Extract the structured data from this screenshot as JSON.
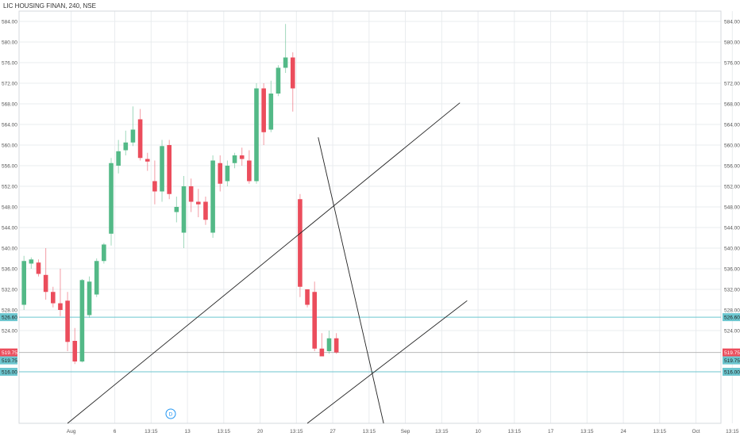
{
  "header": {
    "title": "LIC HOUSING FINAN, 240, NSE"
  },
  "event_marker": {
    "label": "D"
  },
  "chart_data": {
    "type": "candlestick",
    "title": "LIC HOUSING FINAN, 240, NSE",
    "ylim": [
      506,
      586
    ],
    "y_ticks": [
      584,
      580,
      576,
      572,
      568,
      564,
      560,
      556,
      552,
      548,
      544,
      540,
      536,
      532,
      528,
      524
    ],
    "y_tick_labels": [
      "584.00",
      "580.00",
      "576.00",
      "572.00",
      "568.00",
      "564.00",
      "560.00",
      "556.00",
      "552.00",
      "548.00",
      "544.00",
      "540.00",
      "536.00",
      "532.00",
      "528.00",
      "524.00"
    ],
    "x_ticks": [
      {
        "i": 6.5,
        "label": "Aug"
      },
      {
        "i": 12.5,
        "label": "6"
      },
      {
        "i": 17.5,
        "label": "13:15"
      },
      {
        "i": 22.5,
        "label": "13"
      },
      {
        "i": 27.5,
        "label": "13:15"
      },
      {
        "i": 32.5,
        "label": "20"
      },
      {
        "i": 37.5,
        "label": "13:15"
      },
      {
        "i": 42.5,
        "label": "27"
      },
      {
        "i": 47.5,
        "label": "13:15"
      },
      {
        "i": 52.5,
        "label": "Sep"
      },
      {
        "i": 57.5,
        "label": "13:15"
      },
      {
        "i": 62.5,
        "label": "10"
      },
      {
        "i": 67.5,
        "label": "13:15"
      },
      {
        "i": 72.5,
        "label": "17"
      },
      {
        "i": 77.5,
        "label": "13:15"
      },
      {
        "i": 82.5,
        "label": "24"
      },
      {
        "i": 87.5,
        "label": "13:15"
      },
      {
        "i": 92.5,
        "label": "Oct"
      },
      {
        "i": 97.5,
        "label": "13:15"
      }
    ],
    "candles": [
      {
        "o": 529.0,
        "h": 538.5,
        "l": 528.0,
        "c": 537.5
      },
      {
        "o": 537.0,
        "h": 538.2,
        "l": 536.0,
        "c": 537.8
      },
      {
        "o": 537.2,
        "h": 537.8,
        "l": 534.5,
        "c": 535.0
      },
      {
        "o": 534.8,
        "h": 540.0,
        "l": 530.0,
        "c": 531.5
      },
      {
        "o": 531.5,
        "h": 532.5,
        "l": 528.5,
        "c": 529.3
      },
      {
        "o": 529.3,
        "h": 536.0,
        "l": 526.8,
        "c": 528.0
      },
      {
        "o": 529.8,
        "h": 531.5,
        "l": 520.0,
        "c": 521.8
      },
      {
        "o": 522.0,
        "h": 524.5,
        "l": 517.5,
        "c": 518.0
      },
      {
        "o": 518.0,
        "h": 534.0,
        "l": 517.8,
        "c": 533.8
      },
      {
        "o": 527.0,
        "h": 534.5,
        "l": 526.5,
        "c": 533.5
      },
      {
        "o": 531.0,
        "h": 538.0,
        "l": 530.5,
        "c": 537.5
      },
      {
        "o": 537.5,
        "h": 541.0,
        "l": 537.0,
        "c": 540.7
      },
      {
        "o": 542.8,
        "h": 557.5,
        "l": 540.5,
        "c": 556.5
      },
      {
        "o": 556.0,
        "h": 561.0,
        "l": 554.5,
        "c": 558.8
      },
      {
        "o": 559.0,
        "h": 562.8,
        "l": 558.0,
        "c": 560.5
      },
      {
        "o": 560.5,
        "h": 567.5,
        "l": 559.8,
        "c": 563.0
      },
      {
        "o": 565.0,
        "h": 567.0,
        "l": 557.0,
        "c": 557.5
      },
      {
        "o": 557.3,
        "h": 558.5,
        "l": 555.0,
        "c": 556.8
      },
      {
        "o": 553.0,
        "h": 557.0,
        "l": 548.5,
        "c": 551.0
      },
      {
        "o": 551.0,
        "h": 561.0,
        "l": 549.0,
        "c": 559.8
      },
      {
        "o": 560.0,
        "h": 561.0,
        "l": 549.5,
        "c": 550.5
      },
      {
        "o": 547.0,
        "h": 550.0,
        "l": 545.0,
        "c": 548.0
      },
      {
        "o": 543.0,
        "h": 554.0,
        "l": 540.0,
        "c": 552.0
      },
      {
        "o": 552.0,
        "h": 553.5,
        "l": 547.0,
        "c": 549.0
      },
      {
        "o": 549.0,
        "h": 551.5,
        "l": 546.0,
        "c": 548.5
      },
      {
        "o": 549.0,
        "h": 550.0,
        "l": 544.5,
        "c": 545.5
      },
      {
        "o": 543.0,
        "h": 558.0,
        "l": 542.0,
        "c": 557.0
      },
      {
        "o": 556.5,
        "h": 558.0,
        "l": 551.0,
        "c": 552.5
      },
      {
        "o": 553.0,
        "h": 557.0,
        "l": 552.0,
        "c": 556.0
      },
      {
        "o": 556.5,
        "h": 558.5,
        "l": 555.5,
        "c": 558.0
      },
      {
        "o": 558.0,
        "h": 559.5,
        "l": 556.0,
        "c": 557.3
      },
      {
        "o": 557.0,
        "h": 559.0,
        "l": 552.5,
        "c": 553.0
      },
      {
        "o": 553.0,
        "h": 572.0,
        "l": 552.5,
        "c": 571.0
      },
      {
        "o": 571.0,
        "h": 572.0,
        "l": 560.0,
        "c": 562.5
      },
      {
        "o": 563.0,
        "h": 572.5,
        "l": 562.5,
        "c": 570.0
      },
      {
        "o": 570.0,
        "h": 575.5,
        "l": 569.5,
        "c": 575.0
      },
      {
        "o": 575.0,
        "h": 583.5,
        "l": 574.0,
        "c": 577.0
      },
      {
        "o": 577.0,
        "h": 578.0,
        "l": 566.5,
        "c": 571.0
      },
      {
        "o": 549.5,
        "h": 550.5,
        "l": 530.5,
        "c": 532.5
      },
      {
        "o": 532.0,
        "h": 532.0,
        "l": 528.5,
        "c": 529.0
      },
      {
        "o": 531.5,
        "h": 533.5,
        "l": 520.0,
        "c": 520.5
      },
      {
        "o": 520.5,
        "h": 523.5,
        "l": 519.0,
        "c": 519.0
      },
      {
        "o": 520.0,
        "h": 524.0,
        "l": 519.5,
        "c": 522.5
      },
      {
        "o": 522.5,
        "h": 523.5,
        "l": 519.5,
        "c": 519.75
      }
    ],
    "drawn_lines": [
      {
        "from": {
          "i": 6.0,
          "y": 506.0
        },
        "to": {
          "i": 60.0,
          "y": 568.2
        }
      },
      {
        "from": {
          "i": 40.5,
          "y": 561.5
        },
        "to": {
          "i": 49.5,
          "y": 506.0
        }
      },
      {
        "from": {
          "i": 39.0,
          "y": 506.0
        },
        "to": {
          "i": 61.0,
          "y": 529.8
        }
      }
    ],
    "price_levels": [
      {
        "y": 526.6,
        "label": "526.60",
        "style": "line-cyan"
      },
      {
        "y": 519.75,
        "label": "519.75",
        "style": "last-red"
      },
      {
        "y": 519.75,
        "label": "519.75",
        "style": "badge-cyan"
      },
      {
        "y": 516.0,
        "label": "516.00",
        "style": "line-cyan"
      }
    ],
    "colors": {
      "up": "#53b987",
      "down": "#eb4d5c",
      "level": "#6cc6cf",
      "line": "#222222",
      "grid": "#e9ecef",
      "marker": "#2196f3"
    }
  }
}
